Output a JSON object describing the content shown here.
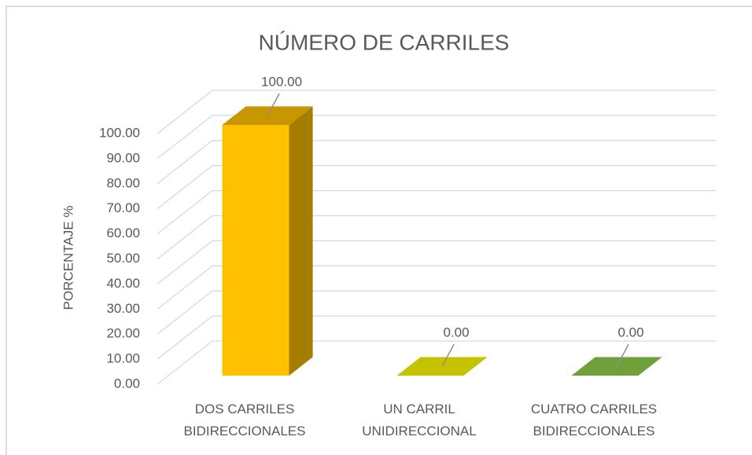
{
  "chart_data": {
    "type": "bar3d",
    "title": "NÚMERO DE CARRILES",
    "y_label": "PORCENTAJE %",
    "categories": [
      "DOS CARRILES BIDIRECCIONALES",
      "UN CARRIL UNIDIRECCIONAL",
      "CUATRO CARRILES BIDIRECCIONALES"
    ],
    "values": [
      100,
      0,
      0
    ],
    "value_labels": [
      "100.00",
      "0.00",
      "0.00"
    ],
    "colors": [
      "#ffc000",
      "#c5c200",
      "#70a03c"
    ],
    "ylim": [
      0,
      100
    ],
    "yticks": [
      {
        "value": 0,
        "label": "0.00"
      },
      {
        "value": 10,
        "label": "10.00"
      },
      {
        "value": 20,
        "label": "20.00"
      },
      {
        "value": 30,
        "label": "30.00"
      },
      {
        "value": 40,
        "label": "40.00"
      },
      {
        "value": 50,
        "label": "50.00"
      },
      {
        "value": 60,
        "label": "60.00"
      },
      {
        "value": 70,
        "label": "70.00"
      },
      {
        "value": 80,
        "label": "80.00"
      },
      {
        "value": 90,
        "label": "90.00"
      },
      {
        "value": 100,
        "label": "100.00"
      }
    ],
    "grid": true
  }
}
